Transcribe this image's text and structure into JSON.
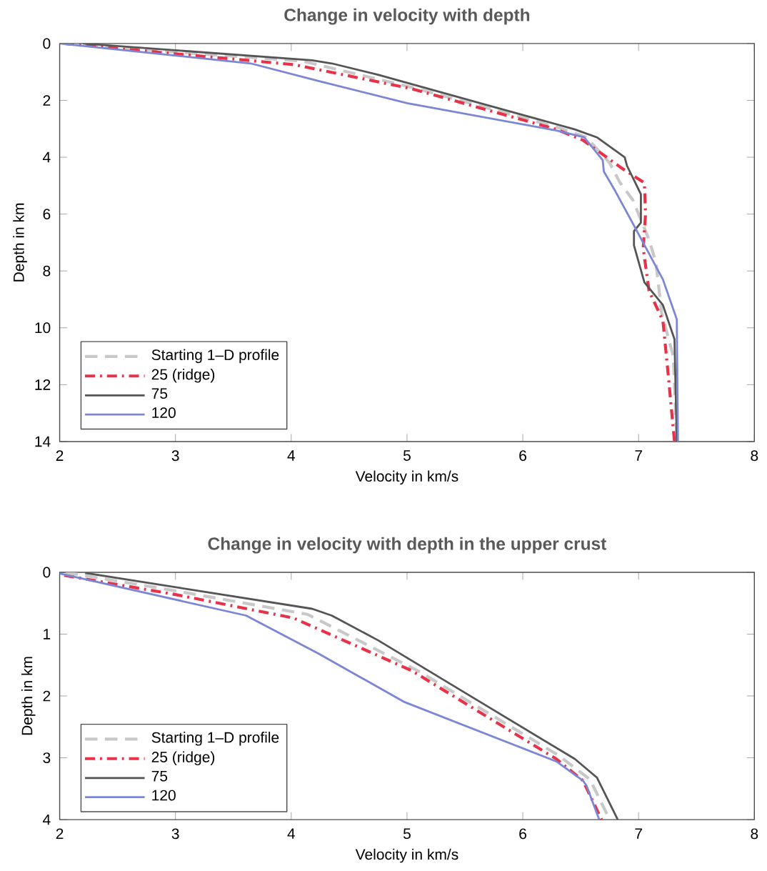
{
  "chart_data": [
    {
      "type": "line",
      "title": "Change in velocity with depth",
      "xlabel": "Velocity in km/s",
      "ylabel": "Depth in km",
      "xlim": [
        2,
        8
      ],
      "ylim": [
        14,
        0
      ],
      "xticks": [
        2,
        3,
        4,
        5,
        6,
        7,
        8
      ],
      "yticks": [
        0,
        2,
        4,
        6,
        8,
        10,
        12,
        14
      ],
      "grid": false,
      "legend": "bottom left",
      "series": [
        {
          "name": "Starting 1–D profile",
          "color": "#c8c8c8",
          "line_style": "dashed",
          "x": [
            2.05,
            3.0,
            4.1,
            5.1,
            6.3,
            6.55,
            6.75,
            6.84,
            6.95,
            7.09,
            7.15,
            7.2,
            7.3,
            7.33
          ],
          "values": [
            0,
            0.3,
            0.62,
            1.6,
            2.95,
            3.3,
            4.2,
            4.9,
            5.5,
            6.9,
            7.7,
            9.5,
            11,
            14
          ]
        },
        {
          "name": "25 (ridge)",
          "color": "#e8324a",
          "line_style": "dashdot",
          "x": [
            2.04,
            3.0,
            4.02,
            5.04,
            6.29,
            6.52,
            6.86,
            7.05,
            7.06,
            7.04,
            7.09,
            7.21,
            7.25,
            7.31
          ],
          "values": [
            0,
            0.36,
            0.74,
            1.59,
            3.02,
            3.4,
            4.4,
            4.9,
            6.0,
            7.2,
            8.7,
            9.75,
            11.4,
            14
          ]
        },
        {
          "name": "75",
          "color": "#555555",
          "line_style": "solid",
          "x": [
            2.2,
            4.18,
            4.35,
            4.75,
            5.67,
            6.45,
            6.64,
            6.88,
            6.9,
            7.02,
            7.02,
            6.96,
            6.96,
            7.05,
            7.21,
            7.31,
            7.33
          ],
          "values": [
            0,
            0.59,
            0.7,
            1.1,
            2.14,
            3.02,
            3.3,
            4.0,
            4.3,
            5.3,
            6.3,
            6.6,
            7.1,
            8.4,
            9.2,
            10.4,
            14
          ]
        },
        {
          "name": "120",
          "color": "#7b86d6",
          "line_style": "solid",
          "x": [
            2.0,
            3.65,
            4.23,
            5.0,
            6.29,
            6.53,
            6.69,
            6.7,
            6.8,
            6.96,
            7.21,
            7.33,
            7.34
          ],
          "values": [
            0,
            0.7,
            1.31,
            2.1,
            3.06,
            3.3,
            4.1,
            4.5,
            5.2,
            6.4,
            8.3,
            9.7,
            14
          ]
        }
      ]
    },
    {
      "type": "line",
      "title": "Change in velocity with depth in the upper crust",
      "xlabel": "Velocity in km/s",
      "ylabel": "Depth in km",
      "xlim": [
        2,
        8
      ],
      "ylim": [
        4,
        0
      ],
      "xticks": [
        2,
        3,
        4,
        5,
        6,
        7,
        8
      ],
      "yticks": [
        0,
        1,
        2,
        3,
        4
      ],
      "grid": false,
      "legend": "bottom left",
      "series": [
        {
          "name": "Starting 1–D profile",
          "color": "#c8c8c8",
          "line_style": "dashed",
          "x": [
            2.05,
            3.0,
            4.14,
            5.1,
            6.3,
            6.58,
            6.75
          ],
          "values": [
            0,
            0.3,
            0.68,
            1.6,
            2.95,
            3.35,
            4.0
          ]
        },
        {
          "name": "25 (ridge)",
          "color": "#e8324a",
          "line_style": "dashdot",
          "x": [
            2.04,
            3.0,
            4.02,
            5.04,
            6.29,
            6.52,
            6.68
          ],
          "values": [
            0.05,
            0.36,
            0.74,
            1.59,
            3.02,
            3.37,
            4.0
          ]
        },
        {
          "name": "75",
          "color": "#555555",
          "line_style": "solid",
          "x": [
            2.22,
            4.18,
            4.35,
            4.75,
            5.67,
            6.45,
            6.64,
            6.82
          ],
          "values": [
            0.01,
            0.59,
            0.7,
            1.1,
            2.14,
            3.02,
            3.32,
            4.0
          ]
        },
        {
          "name": "120",
          "color": "#7b86d6",
          "line_style": "solid",
          "x": [
            2.0,
            3.61,
            4.23,
            4.98,
            6.29,
            6.52,
            6.55,
            6.66
          ],
          "values": [
            0.02,
            0.7,
            1.31,
            2.1,
            3.06,
            3.37,
            3.45,
            4.0
          ]
        }
      ]
    }
  ]
}
